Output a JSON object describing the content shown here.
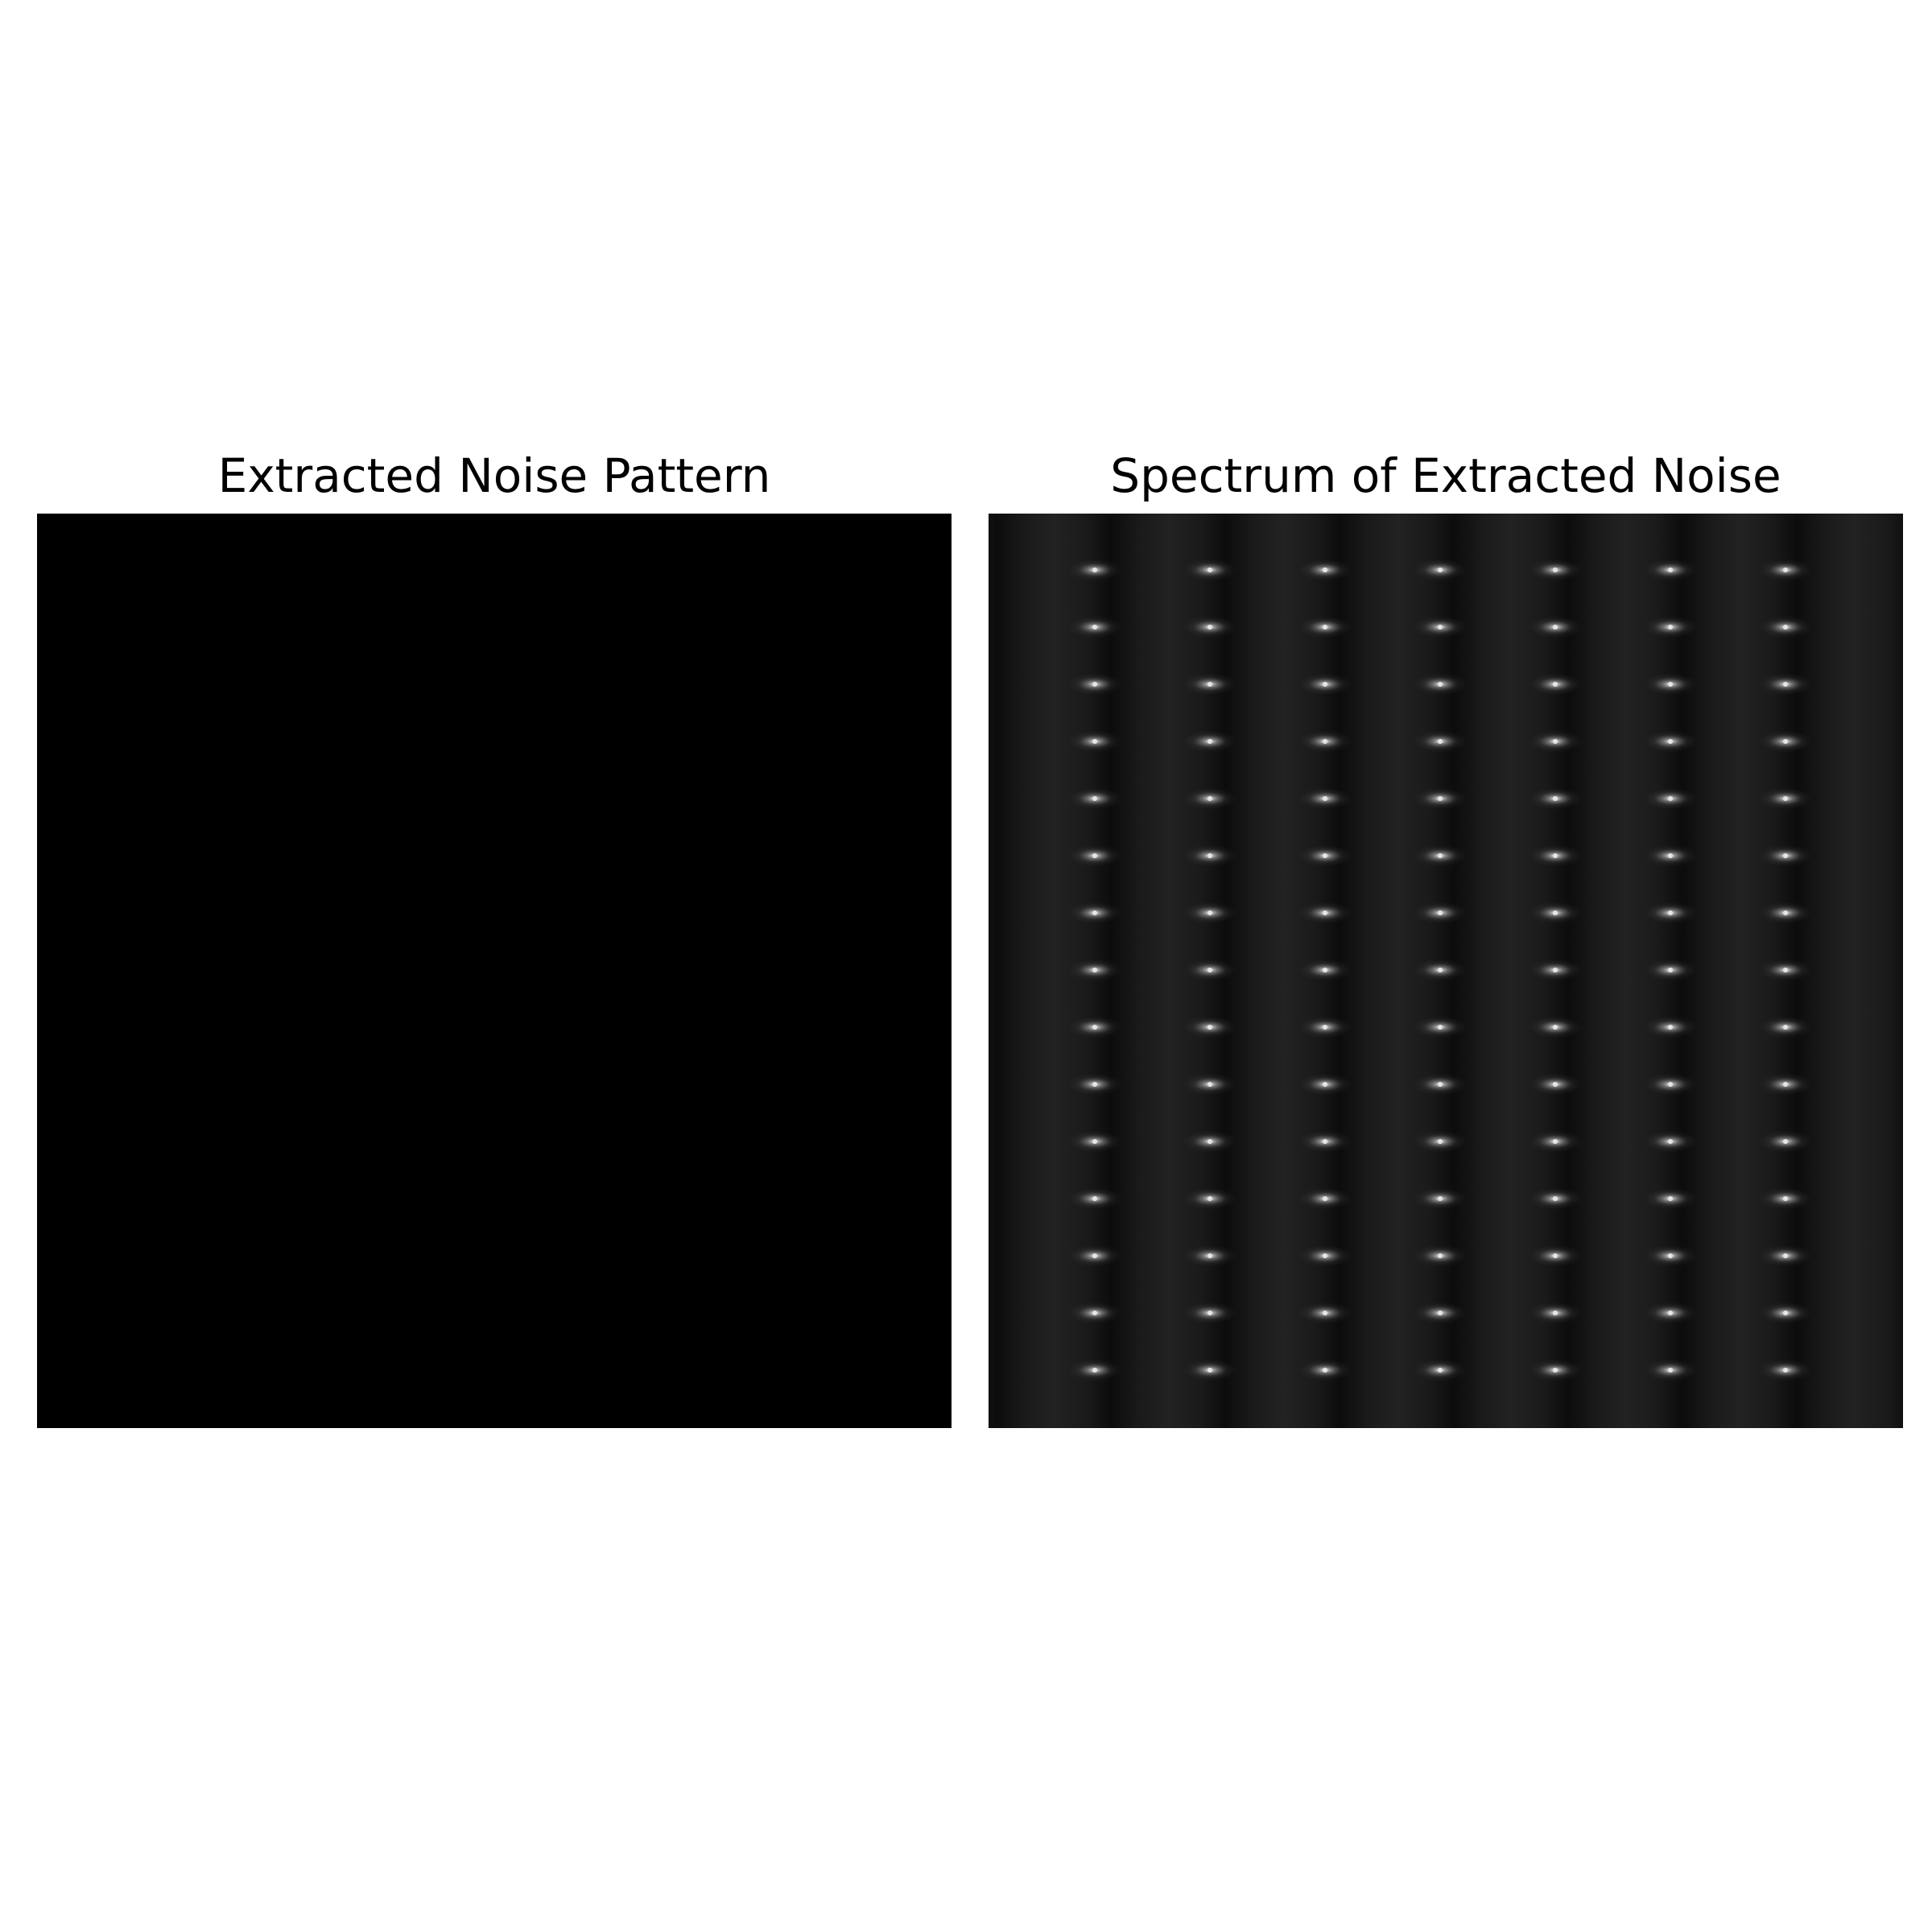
{
  "figure": {
    "left_panel": {
      "title": "Extracted Noise Pattern"
    },
    "right_panel": {
      "title": "Spectrum of Extracted Noise"
    },
    "colormap": "gray",
    "axes_visible": false,
    "spectrum_peaks": {
      "columns": 7,
      "rows": 15
    }
  }
}
